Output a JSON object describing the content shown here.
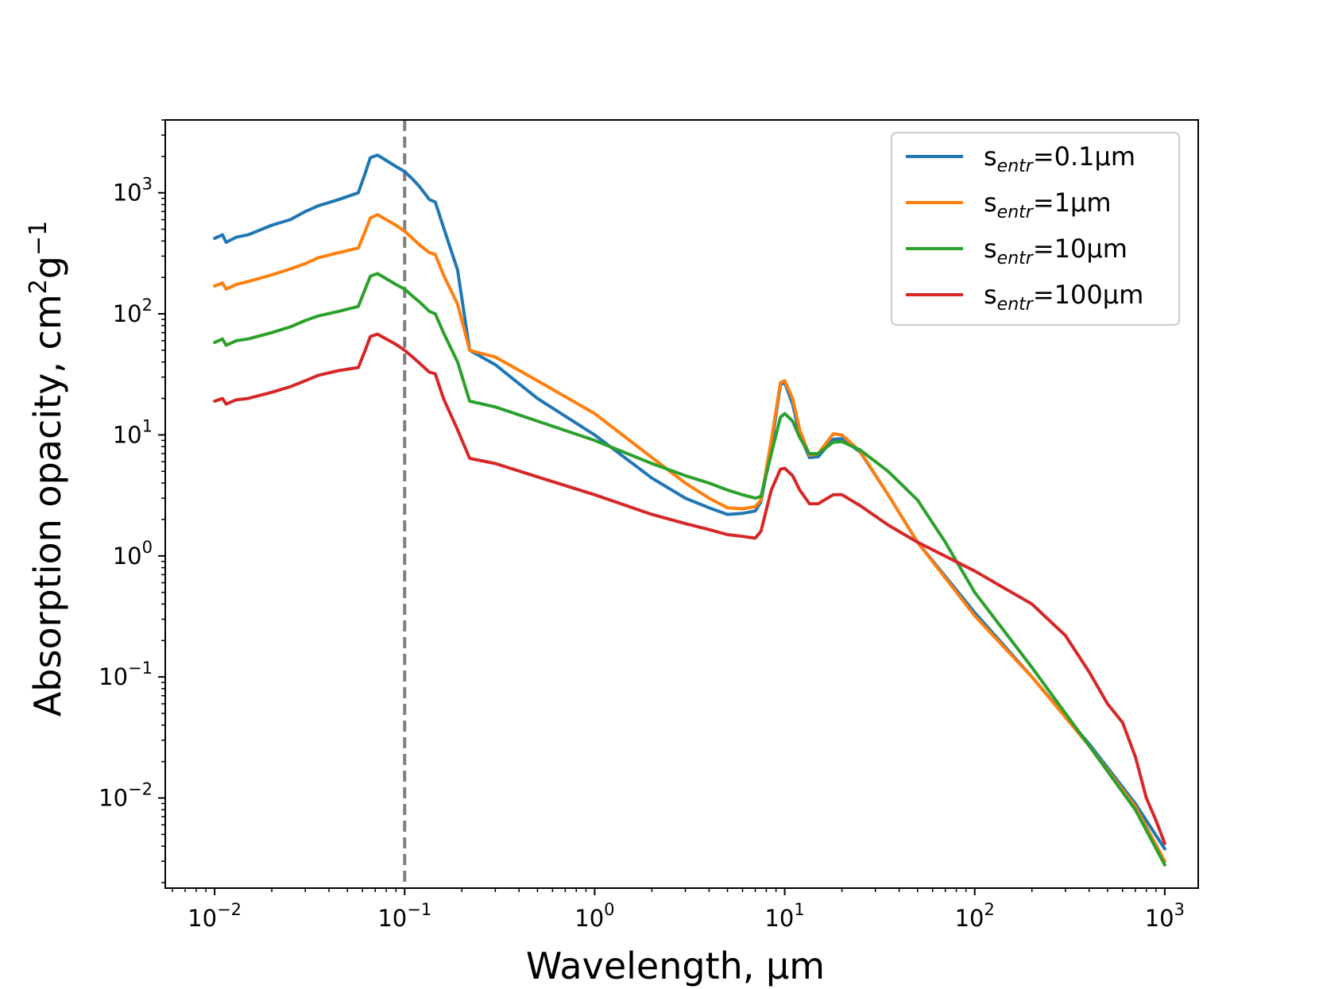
{
  "chart_data": {
    "type": "line",
    "xscale": "log",
    "yscale": "log",
    "xlabel": "Wavelength, μm",
    "ylabel_main": "Absorption opacity, cm",
    "ylabel_sup1": "2",
    "ylabel_mid": "g",
    "ylabel_sup2": "−1",
    "xlim": [
      0.0055,
      1500
    ],
    "ylim": [
      0.0018,
      4000
    ],
    "legend_position": "top-right",
    "xticks": [
      {
        "value": 0.01,
        "base": "10",
        "exp": "−2"
      },
      {
        "value": 0.1,
        "base": "10",
        "exp": "−1"
      },
      {
        "value": 1,
        "base": "10",
        "exp": "0"
      },
      {
        "value": 10,
        "base": "10",
        "exp": "1"
      },
      {
        "value": 100,
        "base": "10",
        "exp": "2"
      },
      {
        "value": 1000,
        "base": "10",
        "exp": "3"
      }
    ],
    "yticks": [
      {
        "value": 0.01,
        "base": "10",
        "exp": "−2"
      },
      {
        "value": 0.1,
        "base": "10",
        "exp": "−1"
      },
      {
        "value": 1,
        "base": "10",
        "exp": "0"
      },
      {
        "value": 10,
        "base": "10",
        "exp": "1"
      },
      {
        "value": 100,
        "base": "10",
        "exp": "2"
      },
      {
        "value": 1000,
        "base": "10",
        "exp": "3"
      }
    ],
    "reference_line": {
      "x": 0.1,
      "color": "#7f7f7f",
      "style": "dashed"
    },
    "series": [
      {
        "name": "s_entr=0.1μm",
        "label_base": "s",
        "label_sub": "entr",
        "label_rest": "=0.1μm",
        "color": "#1f77b4",
        "points": [
          [
            0.01,
            420
          ],
          [
            0.011,
            450
          ],
          [
            0.0115,
            390
          ],
          [
            0.013,
            430
          ],
          [
            0.015,
            450
          ],
          [
            0.02,
            540
          ],
          [
            0.025,
            600
          ],
          [
            0.03,
            700
          ],
          [
            0.035,
            780
          ],
          [
            0.045,
            880
          ],
          [
            0.057,
            1000
          ],
          [
            0.062,
            1450
          ],
          [
            0.066,
            1950
          ],
          [
            0.072,
            2050
          ],
          [
            0.08,
            1850
          ],
          [
            0.09,
            1650
          ],
          [
            0.1,
            1500
          ],
          [
            0.11,
            1300
          ],
          [
            0.12,
            1120
          ],
          [
            0.135,
            880
          ],
          [
            0.145,
            840
          ],
          [
            0.16,
            520
          ],
          [
            0.19,
            230
          ],
          [
            0.22,
            50
          ],
          [
            0.3,
            38
          ],
          [
            0.5,
            20
          ],
          [
            1,
            10
          ],
          [
            2,
            4.4
          ],
          [
            3,
            3.0
          ],
          [
            4,
            2.5
          ],
          [
            5,
            2.2
          ],
          [
            6,
            2.25
          ],
          [
            7,
            2.35
          ],
          [
            7.5,
            2.8
          ],
          [
            8.5,
            8
          ],
          [
            9.5,
            26
          ],
          [
            10,
            27
          ],
          [
            11,
            18
          ],
          [
            12,
            10
          ],
          [
            13.5,
            6.5
          ],
          [
            15,
            6.6
          ],
          [
            18,
            9.2
          ],
          [
            20,
            9.3
          ],
          [
            25,
            7.2
          ],
          [
            35,
            3.2
          ],
          [
            50,
            1.3
          ],
          [
            100,
            0.34
          ],
          [
            200,
            0.1
          ],
          [
            400,
            0.028
          ],
          [
            700,
            0.009
          ],
          [
            1000,
            0.0038
          ]
        ]
      },
      {
        "name": "s_entr=1μm",
        "label_base": "s",
        "label_sub": "entr",
        "label_rest": "=1μm",
        "color": "#ff7f0e",
        "points": [
          [
            0.01,
            170
          ],
          [
            0.011,
            180
          ],
          [
            0.0115,
            160
          ],
          [
            0.013,
            175
          ],
          [
            0.015,
            185
          ],
          [
            0.02,
            210
          ],
          [
            0.025,
            235
          ],
          [
            0.03,
            260
          ],
          [
            0.035,
            290
          ],
          [
            0.045,
            320
          ],
          [
            0.057,
            350
          ],
          [
            0.062,
            480
          ],
          [
            0.066,
            620
          ],
          [
            0.072,
            660
          ],
          [
            0.08,
            600
          ],
          [
            0.09,
            540
          ],
          [
            0.1,
            480
          ],
          [
            0.11,
            420
          ],
          [
            0.12,
            370
          ],
          [
            0.135,
            320
          ],
          [
            0.145,
            310
          ],
          [
            0.16,
            210
          ],
          [
            0.19,
            120
          ],
          [
            0.22,
            50
          ],
          [
            0.3,
            44
          ],
          [
            0.5,
            28
          ],
          [
            1,
            15
          ],
          [
            2,
            6.5
          ],
          [
            3,
            4
          ],
          [
            4,
            3
          ],
          [
            5,
            2.5
          ],
          [
            6,
            2.45
          ],
          [
            7,
            2.55
          ],
          [
            7.5,
            2.9
          ],
          [
            8.5,
            9
          ],
          [
            9.5,
            27
          ],
          [
            10,
            28
          ],
          [
            11,
            20
          ],
          [
            12,
            11
          ],
          [
            13.5,
            6.8
          ],
          [
            15,
            7
          ],
          [
            18,
            10.2
          ],
          [
            20,
            10
          ],
          [
            25,
            7.3
          ],
          [
            35,
            3.2
          ],
          [
            50,
            1.3
          ],
          [
            100,
            0.32
          ],
          [
            200,
            0.1
          ],
          [
            400,
            0.027
          ],
          [
            700,
            0.0085
          ],
          [
            1000,
            0.003
          ]
        ]
      },
      {
        "name": "s_entr=10μm",
        "label_base": "s",
        "label_sub": "entr",
        "label_rest": "=10μm",
        "color": "#2ca02c",
        "points": [
          [
            0.01,
            58
          ],
          [
            0.011,
            62
          ],
          [
            0.0115,
            55
          ],
          [
            0.013,
            60
          ],
          [
            0.015,
            62
          ],
          [
            0.02,
            70
          ],
          [
            0.025,
            78
          ],
          [
            0.03,
            88
          ],
          [
            0.035,
            96
          ],
          [
            0.045,
            105
          ],
          [
            0.057,
            115
          ],
          [
            0.062,
            160
          ],
          [
            0.066,
            205
          ],
          [
            0.072,
            215
          ],
          [
            0.08,
            195
          ],
          [
            0.09,
            175
          ],
          [
            0.1,
            160
          ],
          [
            0.11,
            140
          ],
          [
            0.12,
            125
          ],
          [
            0.135,
            105
          ],
          [
            0.145,
            100
          ],
          [
            0.16,
            70
          ],
          [
            0.19,
            40
          ],
          [
            0.22,
            19
          ],
          [
            0.3,
            17
          ],
          [
            0.5,
            13
          ],
          [
            1,
            9
          ],
          [
            2,
            5.8
          ],
          [
            3,
            4.6
          ],
          [
            4,
            4
          ],
          [
            5,
            3.5
          ],
          [
            6,
            3.2
          ],
          [
            7,
            3
          ],
          [
            7.5,
            3.1
          ],
          [
            8.5,
            7
          ],
          [
            9.5,
            14
          ],
          [
            10,
            15
          ],
          [
            11,
            13
          ],
          [
            12,
            9.5
          ],
          [
            13.5,
            7
          ],
          [
            15,
            7
          ],
          [
            18,
            8.7
          ],
          [
            20,
            8.8
          ],
          [
            25,
            7.5
          ],
          [
            35,
            5
          ],
          [
            50,
            2.9
          ],
          [
            70,
            1.3
          ],
          [
            100,
            0.5
          ],
          [
            200,
            0.12
          ],
          [
            400,
            0.027
          ],
          [
            700,
            0.008
          ],
          [
            1000,
            0.0028
          ]
        ]
      },
      {
        "name": "s_entr=100μm",
        "label_base": "s",
        "label_sub": "entr",
        "label_rest": "=100μm",
        "color": "#d62728",
        "points": [
          [
            0.01,
            19
          ],
          [
            0.011,
            20
          ],
          [
            0.0115,
            18
          ],
          [
            0.013,
            19.5
          ],
          [
            0.015,
            20
          ],
          [
            0.02,
            22.5
          ],
          [
            0.025,
            25
          ],
          [
            0.03,
            28
          ],
          [
            0.035,
            31
          ],
          [
            0.045,
            34
          ],
          [
            0.057,
            36
          ],
          [
            0.062,
            50
          ],
          [
            0.066,
            65
          ],
          [
            0.072,
            68
          ],
          [
            0.08,
            62
          ],
          [
            0.09,
            56
          ],
          [
            0.1,
            50
          ],
          [
            0.11,
            44
          ],
          [
            0.12,
            39
          ],
          [
            0.135,
            33
          ],
          [
            0.145,
            32
          ],
          [
            0.16,
            20
          ],
          [
            0.19,
            11
          ],
          [
            0.22,
            6.4
          ],
          [
            0.3,
            5.8
          ],
          [
            0.5,
            4.5
          ],
          [
            1,
            3.2
          ],
          [
            2,
            2.2
          ],
          [
            3,
            1.85
          ],
          [
            4,
            1.65
          ],
          [
            5,
            1.5
          ],
          [
            6,
            1.45
          ],
          [
            7,
            1.4
          ],
          [
            7.5,
            1.6
          ],
          [
            8.5,
            3.5
          ],
          [
            9.5,
            5.2
          ],
          [
            10,
            5.3
          ],
          [
            11,
            4.6
          ],
          [
            12,
            3.5
          ],
          [
            13.5,
            2.7
          ],
          [
            15,
            2.7
          ],
          [
            18,
            3.2
          ],
          [
            20,
            3.2
          ],
          [
            25,
            2.6
          ],
          [
            35,
            1.8
          ],
          [
            50,
            1.3
          ],
          [
            100,
            0.75
          ],
          [
            200,
            0.4
          ],
          [
            300,
            0.22
          ],
          [
            400,
            0.11
          ],
          [
            500,
            0.06
          ],
          [
            600,
            0.042
          ],
          [
            700,
            0.022
          ],
          [
            800,
            0.01
          ],
          [
            900,
            0.0065
          ],
          [
            1000,
            0.0042
          ]
        ]
      }
    ]
  }
}
